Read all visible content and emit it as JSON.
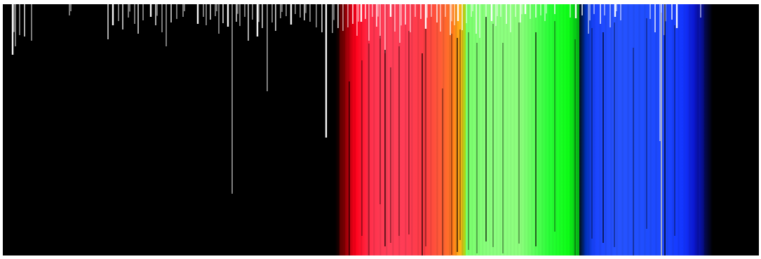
{
  "image": {
    "background": "#ffffff",
    "panel_color": "#000000",
    "colors": {
      "red": "#ff3f58",
      "orange": "#ff8a1c",
      "green": "#8dff7d",
      "blue": "#2753ff",
      "line": "#ffffff"
    }
  }
}
